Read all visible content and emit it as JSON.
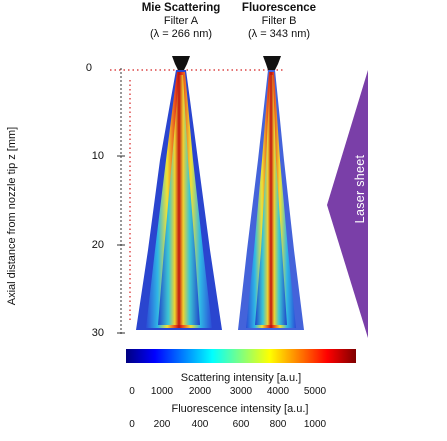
{
  "headers": {
    "mie": {
      "line1": "Mie Scattering",
      "line2": "Filter A",
      "line3": "(λ = 266 nm)"
    },
    "fluo": {
      "line1": "Fluorescence",
      "line2": "Filter B",
      "line3": "(λ = 343 nm)"
    }
  },
  "y_axis": {
    "label": "Axial distance from nozzle tip z [mm]",
    "ticks": [
      "0",
      "10",
      "20",
      "30"
    ]
  },
  "laser_sheet_label": "Laser sheet",
  "scattering_scale": {
    "label": "Scattering intensity [a.u.]",
    "ticks": [
      "0",
      "1000",
      "2000",
      "3000",
      "4000",
      "5000"
    ]
  },
  "fluorescence_scale": {
    "label": "Fluorescence intensity [a.u.]",
    "ticks": [
      "0",
      "200",
      "400",
      "600",
      "800",
      "1000"
    ]
  },
  "colors": {
    "laser_sheet": "#7a3fa8",
    "nozzle": "#111111",
    "dots": "#d42020"
  }
}
